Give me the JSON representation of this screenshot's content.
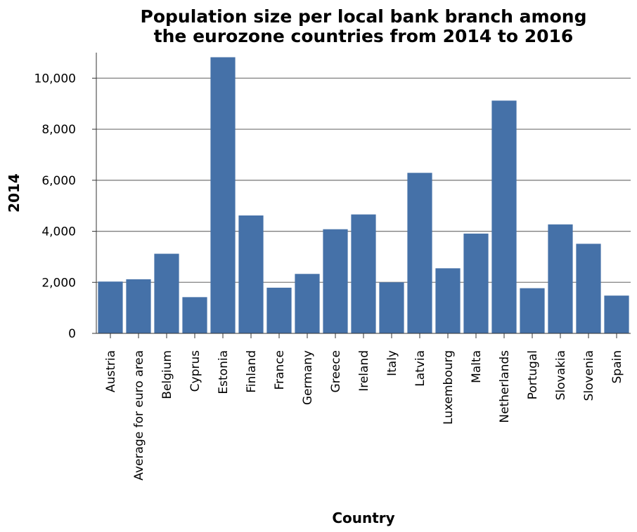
{
  "chart_data": {
    "type": "bar",
    "title_lines": [
      "Population size per local bank branch among",
      "the eurozone countries from 2014 to 2016"
    ],
    "xlabel": "Country",
    "ylabel": "2014",
    "ylim": [
      0,
      11000
    ],
    "yticks": [
      0,
      2000,
      4000,
      6000,
      8000,
      10000
    ],
    "ytick_labels": [
      "0",
      "2,000",
      "4,000",
      "6,000",
      "8,000",
      "10,000"
    ],
    "grid": "horizontal",
    "bar_color": "#4571a8",
    "categories": [
      "Austria",
      "Average for euro area",
      "Belgium",
      "Cyprus",
      "Estonia",
      "Finland",
      "France",
      "Germany",
      "Greece",
      "Ireland",
      "Italy",
      "Latvia",
      "Luxembourg",
      "Malta",
      "Netherlands",
      "Portugal",
      "Slovakia",
      "Slovenia",
      "Spain"
    ],
    "values": [
      2030,
      2120,
      3120,
      1420,
      10820,
      4620,
      1790,
      2330,
      4080,
      4660,
      2000,
      6290,
      2550,
      3910,
      9120,
      1770,
      4270,
      3510,
      1480
    ]
  }
}
